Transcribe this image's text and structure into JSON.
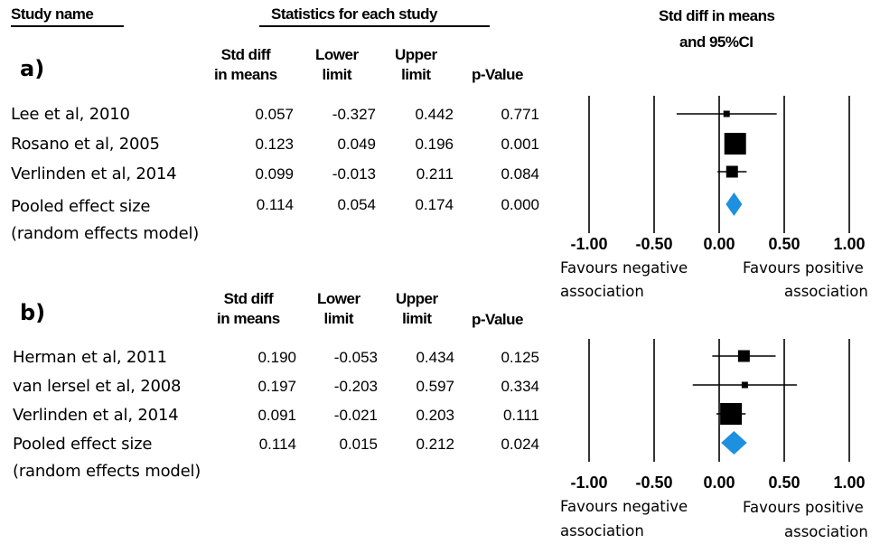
{
  "headers": {
    "study_name": "Study name",
    "statistics": "Statistics for each study",
    "plot_title_line1": "Std diff in means",
    "plot_title_line2": "and 95%CI",
    "col_std_diff_1": "Std diff",
    "col_std_diff_2": "in means",
    "col_lower_1": "Lower",
    "col_lower_2": "limit",
    "col_upper_1": "Upper",
    "col_upper_2": "limit",
    "col_p": "p-Value"
  },
  "panels": [
    {
      "label": "a)",
      "rows": [
        {
          "name": "Lee et al, 2010",
          "std": "0.057",
          "lower": "-0.327",
          "upper": "0.442",
          "p": "0.771"
        },
        {
          "name": "Rosano et al, 2005",
          "std": "0.123",
          "lower": "0.049",
          "upper": "0.196",
          "p": "0.001"
        },
        {
          "name": "Verlinden et al, 2014",
          "std": "0.099",
          "lower": "-0.013",
          "upper": "0.211",
          "p": "0.084"
        }
      ],
      "pooled": {
        "name1": "Pooled effect size",
        "name2": "(random effects model)",
        "std": "0.114",
        "lower": "0.054",
        "upper": "0.174",
        "p": "0.000"
      },
      "favours_negative_1": "Favours negative",
      "favours_negative_2": "association",
      "favours_positive_1": "Favours positive",
      "favours_positive_2": "association"
    },
    {
      "label": "b)",
      "rows": [
        {
          "name": "Herman et al, 2011",
          "std": "0.190",
          "lower": "-0.053",
          "upper": "0.434",
          "p": "0.125"
        },
        {
          "name": "van lersel et al, 2008",
          "std": "0.197",
          "lower": "-0.203",
          "upper": "0.597",
          "p": "0.334"
        },
        {
          "name": "Verlinden et al, 2014",
          "std": "0.091",
          "lower": "-0.021",
          "upper": "0.203",
          "p": "0.111"
        }
      ],
      "pooled": {
        "name1": "Pooled effect size",
        "name2": "(random effects model)",
        "std": "0.114",
        "lower": "0.015",
        "upper": "0.212",
        "p": "0.024"
      },
      "favours_negative_1": "Favours negative",
      "favours_negative_2": "association",
      "favours_positive_1": "Favours positive",
      "favours_positive_2": "association"
    }
  ],
  "chart_data": [
    {
      "type": "forest",
      "xlim": [
        -1.0,
        1.0
      ],
      "xticks": [
        "-1.00",
        "-0.50",
        "0.00",
        "0.50",
        "1.00"
      ],
      "studies": [
        {
          "name": "Lee et al, 2010",
          "estimate": 0.057,
          "lower": -0.327,
          "upper": 0.442,
          "weight": "small"
        },
        {
          "name": "Rosano et al, 2005",
          "estimate": 0.123,
          "lower": 0.049,
          "upper": 0.196,
          "weight": "large"
        },
        {
          "name": "Verlinden et al, 2014",
          "estimate": 0.099,
          "lower": -0.013,
          "upper": 0.211,
          "weight": "medium"
        }
      ],
      "pooled": {
        "estimate": 0.114,
        "lower": 0.054,
        "upper": 0.174
      },
      "colors": {
        "marker": "#000000",
        "pooled": "#1e90e0"
      }
    },
    {
      "type": "forest",
      "xlim": [
        -1.0,
        1.0
      ],
      "xticks": [
        "-1.00",
        "-0.50",
        "0.00",
        "0.50",
        "1.00"
      ],
      "studies": [
        {
          "name": "Herman et al, 2011",
          "estimate": 0.19,
          "lower": -0.053,
          "upper": 0.434,
          "weight": "medium"
        },
        {
          "name": "van lersel et al, 2008",
          "estimate": 0.197,
          "lower": -0.203,
          "upper": 0.597,
          "weight": "small"
        },
        {
          "name": "Verlinden et al, 2014",
          "estimate": 0.091,
          "lower": -0.021,
          "upper": 0.203,
          "weight": "large"
        }
      ],
      "pooled": {
        "estimate": 0.114,
        "lower": 0.015,
        "upper": 0.212
      },
      "colors": {
        "marker": "#000000",
        "pooled": "#1e90e0"
      }
    }
  ]
}
